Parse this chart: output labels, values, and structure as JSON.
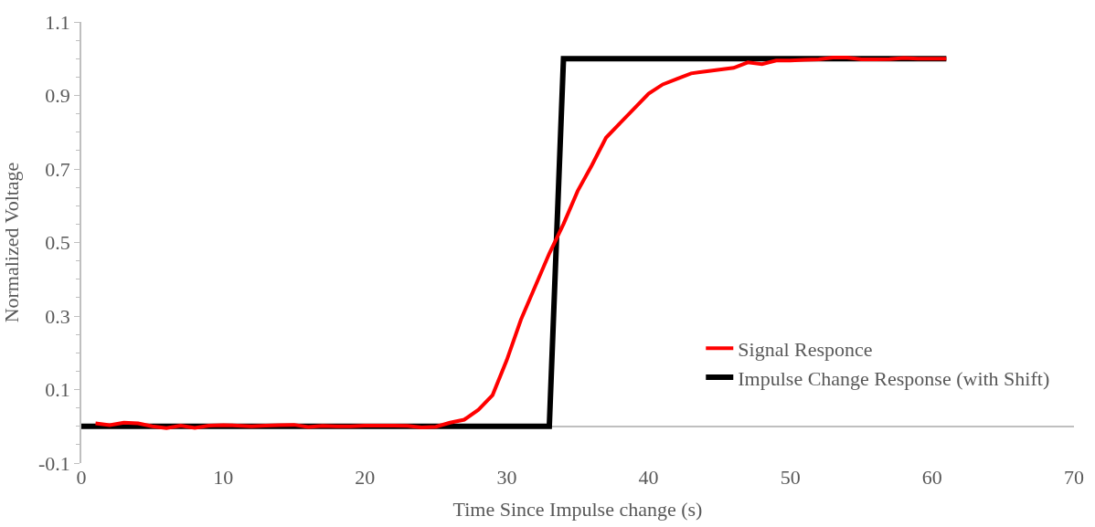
{
  "chart_data": {
    "type": "line",
    "xlabel": "Time Since Impulse change (s)",
    "ylabel": "Normalized Voltage",
    "xlim": [
      0,
      70
    ],
    "xticks": [
      0,
      10,
      20,
      30,
      40,
      50,
      60,
      70
    ],
    "ylim": [
      -0.1,
      1.1
    ],
    "yticks": [
      -0.1,
      0.1,
      0.3,
      0.5,
      0.7,
      0.9,
      1.1
    ],
    "legend": "bottom right",
    "marker": "none",
    "line_style": "solid",
    "series": [
      {
        "name": "Signal Responce",
        "color": "#ff0000",
        "x": [
          1,
          2,
          3,
          4,
          5,
          6,
          7,
          8,
          9,
          10,
          11,
          12,
          13,
          14,
          15,
          16,
          17,
          18,
          19,
          20,
          21,
          22,
          23,
          24,
          25,
          26,
          27,
          28,
          29,
          30,
          31,
          32,
          33,
          34,
          35,
          36,
          37,
          38,
          39,
          40,
          41,
          42,
          43,
          44,
          45,
          46,
          47,
          48,
          49,
          50,
          51,
          52,
          53,
          54,
          55,
          56,
          57,
          58,
          59,
          60,
          61
        ],
        "values": [
          0.008,
          0.003,
          0.01,
          0.008,
          0.0,
          -0.005,
          0.002,
          -0.004,
          0.002,
          0.003,
          0.002,
          0.0,
          0.002,
          0.003,
          0.004,
          -0.002,
          0.001,
          0.0,
          0.0,
          0.002,
          0.002,
          0.002,
          0.001,
          -0.003,
          -0.001,
          0.01,
          0.018,
          0.045,
          0.085,
          0.18,
          0.29,
          0.38,
          0.47,
          0.55,
          0.64,
          0.71,
          0.785,
          0.825,
          0.865,
          0.905,
          0.93,
          0.945,
          0.96,
          0.965,
          0.97,
          0.975,
          0.99,
          0.985,
          0.995,
          0.995,
          0.997,
          0.998,
          1.003,
          1.003,
          0.998,
          0.998,
          0.999,
          1.002,
          1.0,
          1.0,
          1.0
        ]
      },
      {
        "name": "Impulse Change Response (with Shift)",
        "color": "#000000",
        "x": [
          0,
          33,
          34,
          61
        ],
        "values": [
          0,
          0,
          1,
          1
        ]
      }
    ]
  }
}
